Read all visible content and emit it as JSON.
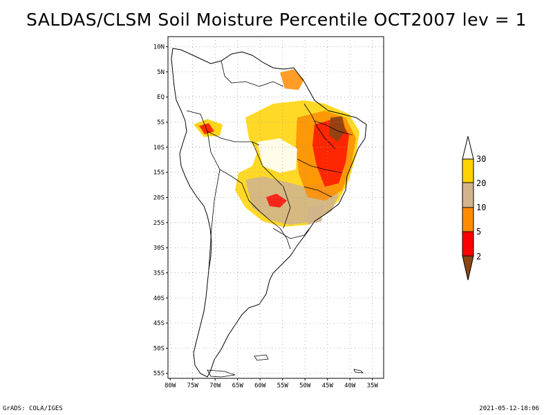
{
  "title": "SALDAS/CLSM Soil Moisture Percentile OCT2007 lev = 1",
  "map": {
    "lat_labels": [
      "10N",
      "5N",
      "EQ",
      "5S",
      "10S",
      "15S",
      "20S",
      "25S",
      "30S",
      "35S",
      "40S",
      "45S",
      "50S",
      "55S"
    ],
    "lat_values": [
      10,
      5,
      0,
      -5,
      -10,
      -15,
      -20,
      -25,
      -30,
      -35,
      -40,
      -45,
      -50,
      -55
    ],
    "lon_labels": [
      "80W",
      "75W",
      "70W",
      "65W",
      "60W",
      "55W",
      "50W",
      "45W",
      "40W",
      "35W"
    ],
    "lon_values": [
      -80,
      -75,
      -70,
      -65,
      -60,
      -55,
      -50,
      -45,
      -40,
      -35
    ],
    "lon_range": [
      -80.5,
      -32.5
    ],
    "lat_range": [
      -56,
      12
    ]
  },
  "legend": {
    "labels": [
      "30",
      "20",
      "10",
      "5",
      "2"
    ],
    "colors": [
      "#ffffff",
      "#ffd200",
      "#d2b48c",
      "#ff8c00",
      "#ff0000",
      "#8b4513"
    ]
  },
  "footer": {
    "left": "GrADS: COLA/IGES",
    "right": "2021-05-12-18:06"
  }
}
